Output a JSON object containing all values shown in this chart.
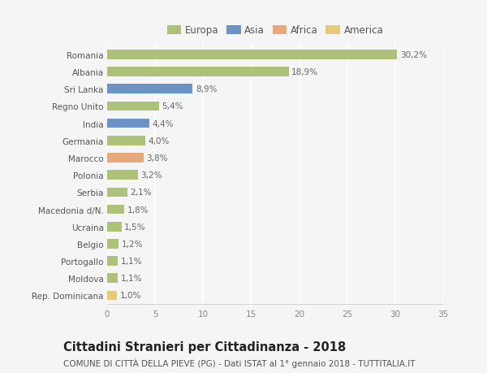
{
  "categories": [
    "Romania",
    "Albania",
    "Sri Lanka",
    "Regno Unito",
    "India",
    "Germania",
    "Marocco",
    "Polonia",
    "Serbia",
    "Macedonia d/N.",
    "Ucraina",
    "Belgio",
    "Portogallo",
    "Moldova",
    "Rep. Dominicana"
  ],
  "values": [
    30.2,
    18.9,
    8.9,
    5.4,
    4.4,
    4.0,
    3.8,
    3.2,
    2.1,
    1.8,
    1.5,
    1.2,
    1.1,
    1.1,
    1.0
  ],
  "labels": [
    "30,2%",
    "18,9%",
    "8,9%",
    "5,4%",
    "4,4%",
    "4,0%",
    "3,8%",
    "3,2%",
    "2,1%",
    "1,8%",
    "1,5%",
    "1,2%",
    "1,1%",
    "1,1%",
    "1,0%"
  ],
  "colors": [
    "#adc178",
    "#adc178",
    "#6b93c4",
    "#adc178",
    "#6b93c4",
    "#adc178",
    "#e8a87c",
    "#adc178",
    "#adc178",
    "#adc178",
    "#adc178",
    "#adc178",
    "#adc178",
    "#adc178",
    "#e8c97a"
  ],
  "legend_labels": [
    "Europa",
    "Asia",
    "Africa",
    "America"
  ],
  "legend_colors": [
    "#adc178",
    "#6b93c4",
    "#e8a87c",
    "#e8c97a"
  ],
  "xlim": [
    0,
    35
  ],
  "xticks": [
    0,
    5,
    10,
    15,
    20,
    25,
    30,
    35
  ],
  "title": "Cittadini Stranieri per Cittadinanza - 2018",
  "subtitle": "COMUNE DI CITTÀ DELLA PIEVE (PG) - Dati ISTAT al 1° gennaio 2018 - TUTTITALIA.IT",
  "background_color": "#f5f5f5",
  "bar_height": 0.55,
  "grid_color": "#ffffff",
  "label_fontsize": 7.5,
  "tick_fontsize": 7.5,
  "title_fontsize": 10.5,
  "subtitle_fontsize": 7.5
}
